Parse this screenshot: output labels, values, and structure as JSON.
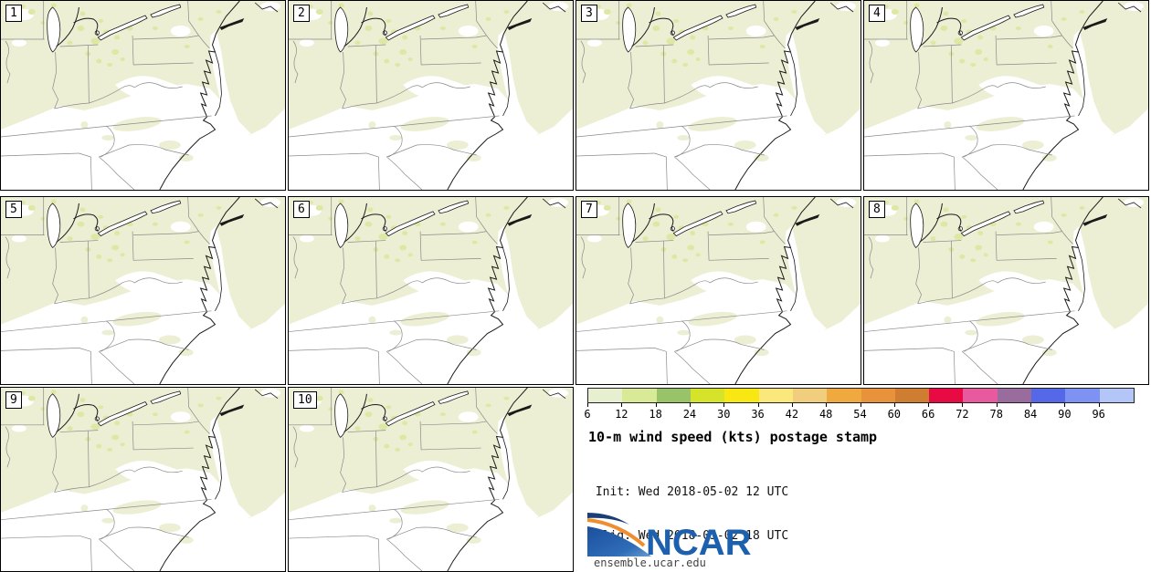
{
  "page_title": "10-m wind speed (kts) postage stamp",
  "panels": [
    {
      "label": "1"
    },
    {
      "label": "2"
    },
    {
      "label": "3"
    },
    {
      "label": "4"
    },
    {
      "label": "5"
    },
    {
      "label": "6"
    },
    {
      "label": "7"
    },
    {
      "label": "8"
    },
    {
      "label": "9"
    },
    {
      "label": "10"
    }
  ],
  "legend": {
    "title": "10-m wind speed (kts) postage stamp",
    "init_line": " Init: Wed 2018-05-02 12 UTC",
    "valid_line": "Valid: Wed 2018-05-02 18 UTC",
    "colorbar": {
      "tick_labels": [
        "6",
        "12",
        "18",
        "24",
        "30",
        "36",
        "42",
        "48",
        "54",
        "60",
        "66",
        "72",
        "78",
        "84",
        "90",
        "96"
      ],
      "colors": [
        "#e7efd1",
        "#d9ea96",
        "#98c368",
        "#d6e32b",
        "#f8e713",
        "#fae87d",
        "#f0ce7e",
        "#efa93f",
        "#e8933b",
        "#cf7d30",
        "#e80a42",
        "#e75b9e",
        "#9a6b9d",
        "#5468e8",
        "#7d92f2",
        "#b4c6f7"
      ]
    },
    "logo_text": "NCAR",
    "website": "ensemble.ucar.edu"
  },
  "chart_data": {
    "type": "heatmap",
    "title": "10-m wind speed (kts) postage stamp",
    "subtitle_lines": [
      " Init: Wed 2018-05-02 12 UTC",
      "Valid: Wed 2018-05-02 18 UTC"
    ],
    "ensemble_members": [
      "1",
      "2",
      "3",
      "4",
      "5",
      "6",
      "7",
      "8",
      "9",
      "10"
    ],
    "variable": "10-m wind speed",
    "units": "kts",
    "colorbar_levels": [
      6,
      12,
      18,
      24,
      30,
      36,
      42,
      48,
      54,
      60,
      66,
      72,
      78,
      84,
      90,
      96
    ],
    "colorbar_colors": [
      "#e7efd1",
      "#d9ea96",
      "#98c368",
      "#d6e32b",
      "#f8e713",
      "#fae87d",
      "#f0ce7e",
      "#efa93f",
      "#e8933b",
      "#cf7d30",
      "#e80a42",
      "#e75b9e",
      "#9a6b9d",
      "#5468e8",
      "#7d92f2",
      "#b4c6f7"
    ],
    "legend_position": "bottom-right",
    "layout": "10 map panels in 4-column grid, eastern United States domain",
    "depicted_range_note": "map shading spans only the lowest bins (~6-18 kts); white areas < 6 kts"
  },
  "theme": {
    "map-green": "#ecefd3",
    "map-speckle": "#dde8a4",
    "map-state": "#8a8a8a",
    "map-coast": "#1a1a1a",
    "panel-border": "#000000",
    "logo-navy": "#1c3e76",
    "logo-orange": "#ef8d31",
    "logo-blue": "#2a64ad",
    "logo-text-blue": "#1d60ae",
    "website-color": "#444444"
  }
}
